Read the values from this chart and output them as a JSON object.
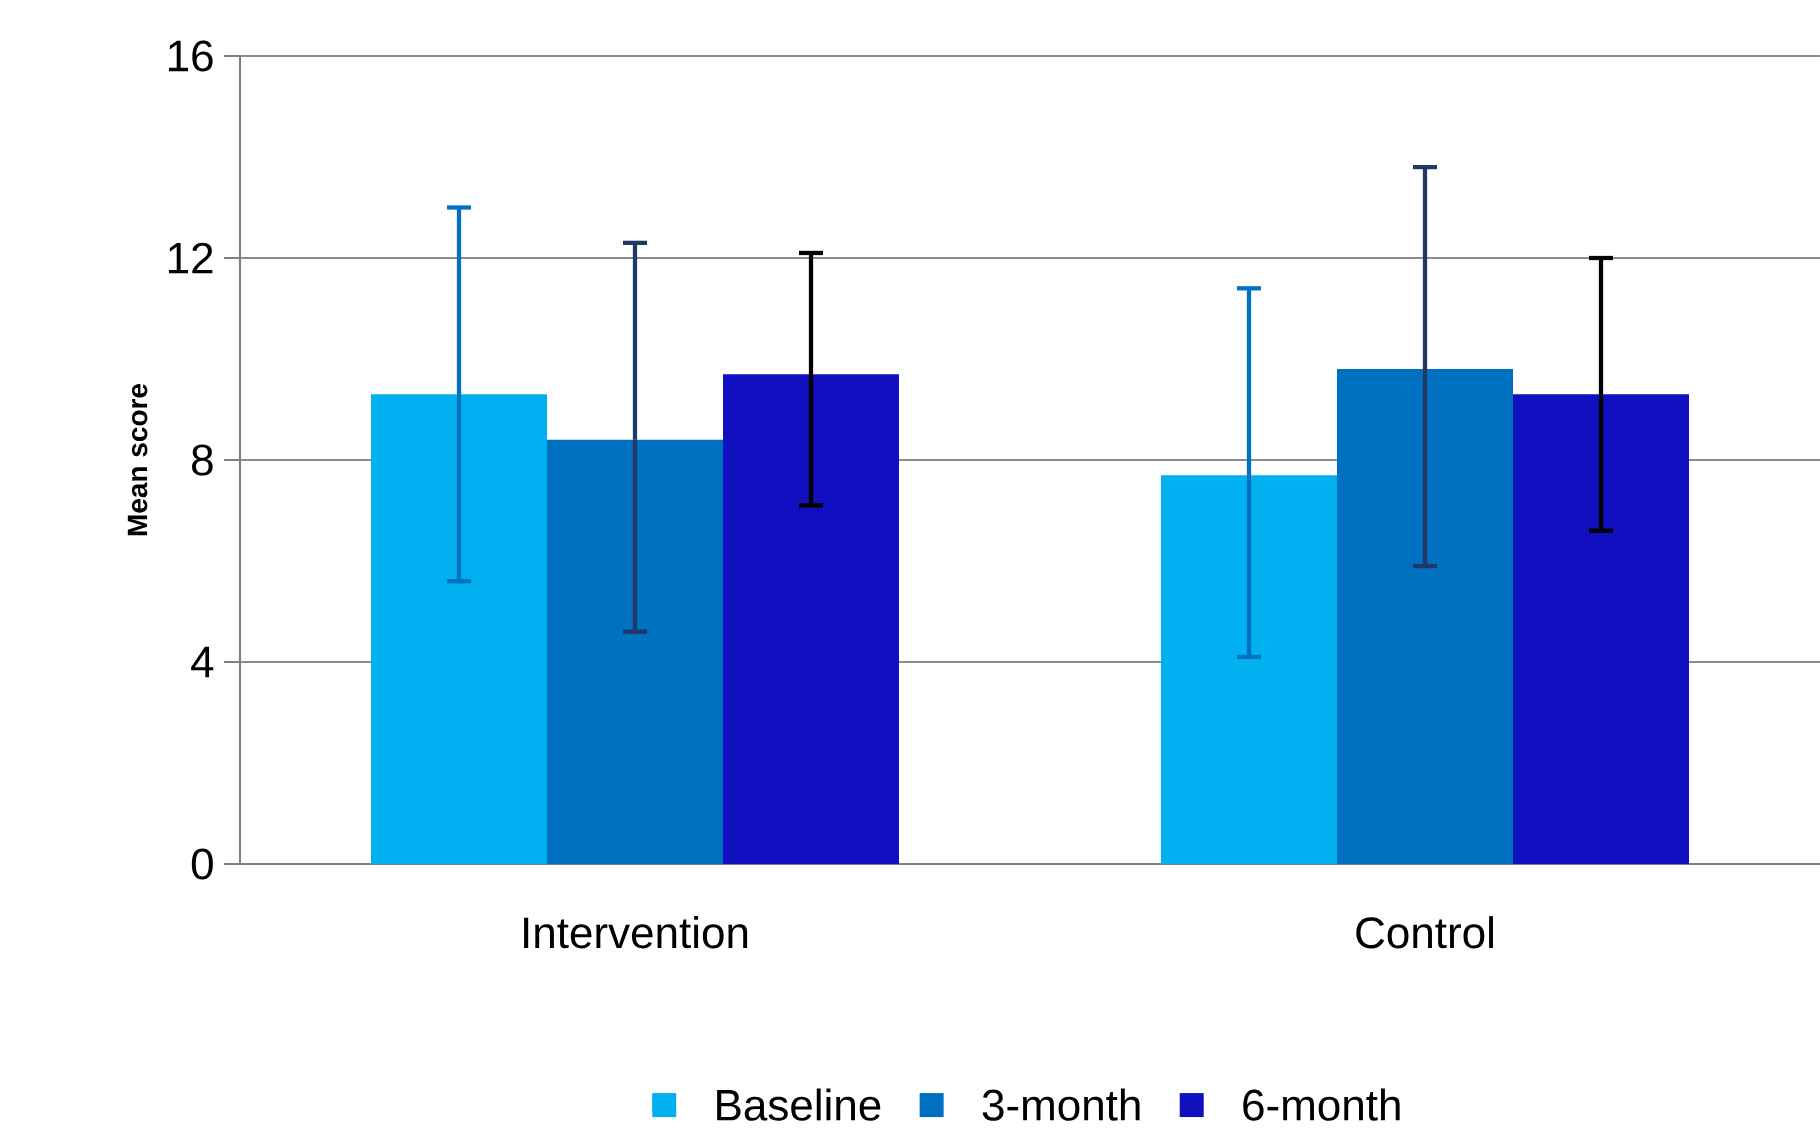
{
  "chart_data": {
    "type": "bar",
    "ylabel": "Mean score",
    "categories": [
      "Intervention",
      "Control"
    ],
    "series": [
      {
        "name": "Baseline",
        "color": "#00b0f0",
        "values": [
          9.3,
          7.7
        ],
        "errors": [
          [
            5.6,
            13.0
          ],
          [
            4.1,
            11.4
          ]
        ]
      },
      {
        "name": "3-month",
        "color": "#0070c0",
        "values": [
          8.4,
          9.8
        ],
        "errors": [
          [
            4.6,
            12.3
          ],
          [
            5.9,
            13.8
          ]
        ]
      },
      {
        "name": "6-month",
        "color": "#1010c0",
        "values": [
          9.7,
          9.3
        ],
        "errors": [
          [
            7.1,
            12.1
          ],
          [
            6.6,
            12.0
          ]
        ]
      }
    ],
    "ylim": [
      0,
      16
    ],
    "yticks": [
      0,
      4,
      8,
      12,
      16
    ],
    "grid": "y",
    "legend": "bottom"
  }
}
